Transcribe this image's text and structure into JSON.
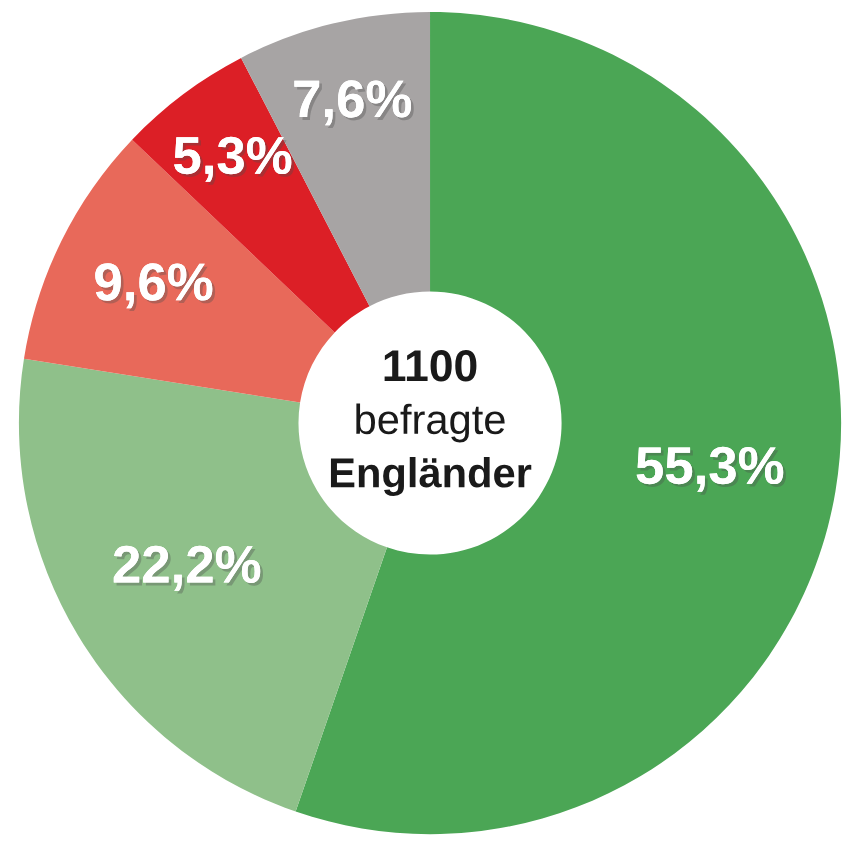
{
  "chart_data": {
    "type": "donut",
    "categories": [
      null,
      null,
      null,
      null,
      null
    ],
    "values": [
      55.3,
      22.2,
      9.6,
      5.3,
      7.6
    ],
    "colors": [
      "#4ba655",
      "#8fc08a",
      "#e8695a",
      "#dc1f26",
      "#a7a4a4"
    ],
    "value_labels": [
      "55,3%",
      "22,2%",
      "9,6%",
      "5,3%",
      "7,6%"
    ],
    "annotations": [
      "1100",
      "befragte",
      "Engländer"
    ]
  }
}
